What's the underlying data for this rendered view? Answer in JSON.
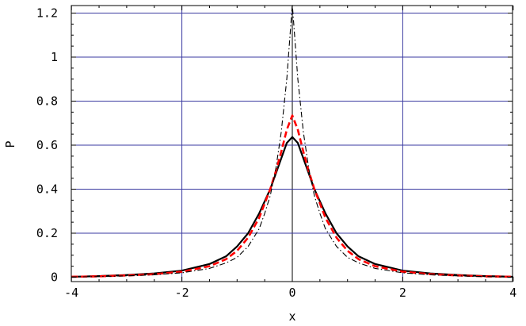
{
  "chart_data": {
    "type": "line",
    "title": "",
    "xlabel": "x",
    "ylabel": "P",
    "xlim": [
      -4,
      4
    ],
    "ylim": [
      0,
      1.25
    ],
    "grid": true,
    "colors": {
      "grid": "#3a3aa0",
      "axis": "#000000",
      "series_black": "#000000",
      "series_red": "#ff0000"
    },
    "x_ticks": [
      {
        "value": -4,
        "label": "-4"
      },
      {
        "value": -2,
        "label": "-2"
      },
      {
        "value": 0,
        "label": "0"
      },
      {
        "value": 2,
        "label": "2"
      },
      {
        "value": 4,
        "label": "4"
      }
    ],
    "y_ticks": [
      {
        "value": 0,
        "label": "0"
      },
      {
        "value": 0.2,
        "label": "0.2"
      },
      {
        "value": 0.4,
        "label": "0.4"
      },
      {
        "value": 0.6,
        "label": "0.6"
      },
      {
        "value": 0.8,
        "label": "0.8"
      },
      {
        "value": 1,
        "label": "1"
      },
      {
        "value": 1.2,
        "label": "1.2"
      }
    ],
    "x_gridlines": [
      -2,
      0,
      2
    ],
    "y_gridlines": [
      0.2,
      0.4,
      0.6,
      0.8,
      1,
      1.2
    ],
    "series": [
      {
        "style": "solid",
        "color": "#000000",
        "x": [
          -4,
          -3.5,
          -3,
          -2.5,
          -2,
          -1.5,
          -1.2,
          -1,
          -0.8,
          -0.6,
          -0.4,
          -0.3,
          -0.2,
          -0.1,
          0,
          0.1,
          0.2,
          0.3,
          0.4,
          0.6,
          0.8,
          1,
          1.2,
          1.5,
          2,
          2.5,
          3,
          3.5,
          4
        ],
        "y": [
          0.002,
          0.005,
          0.01,
          0.017,
          0.03,
          0.06,
          0.095,
          0.14,
          0.2,
          0.29,
          0.4,
          0.47,
          0.54,
          0.61,
          0.637,
          0.61,
          0.54,
          0.47,
          0.4,
          0.29,
          0.2,
          0.14,
          0.095,
          0.06,
          0.03,
          0.017,
          0.01,
          0.005,
          0.002
        ]
      },
      {
        "style": "dashed",
        "color": "#ff0000",
        "x": [
          -4,
          -3.5,
          -3,
          -2.5,
          -2,
          -1.5,
          -1.2,
          -1,
          -0.8,
          -0.6,
          -0.4,
          -0.3,
          -0.2,
          -0.1,
          0,
          0.1,
          0.2,
          0.3,
          0.4,
          0.6,
          0.8,
          1,
          1.2,
          1.5,
          2,
          2.5,
          3,
          3.5,
          4
        ],
        "y": [
          0.002,
          0.004,
          0.008,
          0.014,
          0.025,
          0.05,
          0.082,
          0.12,
          0.18,
          0.27,
          0.4,
          0.48,
          0.57,
          0.67,
          0.735,
          0.67,
          0.57,
          0.48,
          0.4,
          0.27,
          0.18,
          0.12,
          0.082,
          0.05,
          0.025,
          0.014,
          0.008,
          0.004,
          0.002
        ]
      },
      {
        "style": "dashdot",
        "color": "#000000",
        "x": [
          -4,
          -3.5,
          -3,
          -2.5,
          -2,
          -1.5,
          -1.2,
          -1,
          -0.8,
          -0.6,
          -0.5,
          -0.4,
          -0.3,
          -0.2,
          -0.1,
          0,
          0.1,
          0.2,
          0.3,
          0.4,
          0.5,
          0.6,
          0.8,
          1,
          1.2,
          1.5,
          2,
          2.5,
          3,
          3.5,
          4
        ],
        "y": [
          0.001,
          0.003,
          0.006,
          0.011,
          0.02,
          0.04,
          0.065,
          0.09,
          0.14,
          0.22,
          0.29,
          0.37,
          0.49,
          0.66,
          0.9,
          1.24,
          0.9,
          0.66,
          0.49,
          0.37,
          0.29,
          0.22,
          0.14,
          0.09,
          0.065,
          0.04,
          0.02,
          0.011,
          0.006,
          0.003,
          0.001
        ]
      }
    ]
  }
}
